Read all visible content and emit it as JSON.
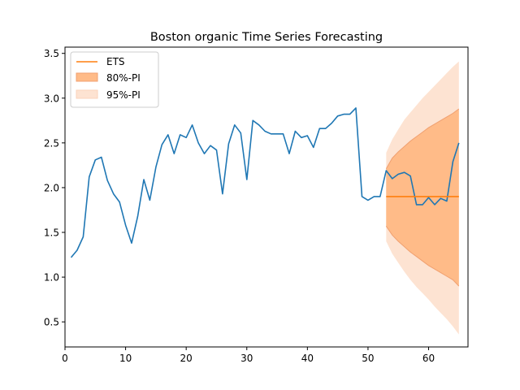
{
  "chart_data": {
    "type": "line",
    "title": "Boston organic Time Series Forecasting",
    "xlabel": "",
    "ylabel": "",
    "xlim": [
      0,
      66.5
    ],
    "ylim": [
      0.22,
      3.57
    ],
    "xticks": [
      0,
      10,
      20,
      30,
      40,
      50,
      60
    ],
    "yticks": [
      0.5,
      1.0,
      1.5,
      2.0,
      2.5,
      3.0,
      3.5
    ],
    "ytick_labels": [
      "0.5",
      "1.0",
      "1.5",
      "2.0",
      "2.5",
      "3.0",
      "3.5"
    ],
    "grid": false,
    "legend_position": "top-left",
    "legend": [
      "ETS",
      "80%-PI",
      "95%-PI"
    ],
    "colors": {
      "actual": "#1f77b4",
      "forecast": "#ff7f0e",
      "pi80": "#ffbb88",
      "pi95": "#fde3d2"
    },
    "series": [
      {
        "x": [
          1,
          2,
          3,
          4,
          5,
          6,
          7,
          8,
          9,
          10,
          11,
          12,
          13,
          14,
          15,
          16,
          17,
          18,
          19,
          20,
          21,
          22,
          23,
          24,
          25,
          26,
          27,
          28,
          29,
          30,
          31,
          32,
          33,
          34,
          35,
          36,
          37,
          38,
          39,
          40,
          41,
          42,
          43,
          44,
          45,
          46,
          47,
          48,
          49,
          50,
          51,
          52,
          53,
          54,
          55,
          56,
          57,
          58,
          59,
          60,
          61,
          62,
          63,
          64,
          65
        ],
        "values": [
          1.22,
          1.3,
          1.45,
          2.12,
          2.31,
          2.34,
          2.08,
          1.93,
          1.84,
          1.58,
          1.38,
          1.68,
          2.09,
          1.86,
          2.23,
          2.48,
          2.59,
          2.38,
          2.59,
          2.56,
          2.7,
          2.5,
          2.38,
          2.47,
          2.42,
          1.93,
          2.49,
          2.7,
          2.61,
          2.09,
          2.75,
          2.7,
          2.63,
          2.6,
          2.6,
          2.6,
          2.38,
          2.63,
          2.56,
          2.58,
          2.45,
          2.66,
          2.66,
          2.72,
          2.8,
          2.82,
          2.82,
          2.89,
          1.9,
          1.86,
          1.9,
          1.9,
          2.19,
          2.1,
          2.15,
          2.17,
          2.13,
          1.81,
          1.81,
          1.89,
          1.81,
          1.88,
          1.85,
          2.29,
          2.5
        ]
      },
      {
        "name": "ETS",
        "x": [
          53,
          65
        ],
        "values": [
          1.9,
          1.9
        ]
      }
    ],
    "intervals": [
      {
        "name": "80%-PI",
        "x": [
          53,
          54,
          55,
          56,
          57,
          58,
          59,
          60,
          61,
          62,
          63,
          64,
          65
        ],
        "lower": [
          1.57,
          1.47,
          1.4,
          1.34,
          1.28,
          1.23,
          1.18,
          1.13,
          1.09,
          1.05,
          1.01,
          0.97,
          0.9
        ],
        "upper": [
          2.21,
          2.33,
          2.4,
          2.46,
          2.52,
          2.57,
          2.62,
          2.67,
          2.71,
          2.75,
          2.79,
          2.83,
          2.88
        ]
      },
      {
        "name": "95%-PI",
        "x": [
          53,
          54,
          55,
          56,
          57,
          58,
          59,
          60,
          61,
          62,
          63,
          64,
          65
        ],
        "lower": [
          1.4,
          1.26,
          1.16,
          1.06,
          0.97,
          0.89,
          0.82,
          0.75,
          0.67,
          0.6,
          0.53,
          0.45,
          0.36
        ],
        "upper": [
          2.39,
          2.54,
          2.65,
          2.76,
          2.84,
          2.92,
          3.0,
          3.07,
          3.14,
          3.21,
          3.28,
          3.35,
          3.41
        ]
      }
    ]
  }
}
